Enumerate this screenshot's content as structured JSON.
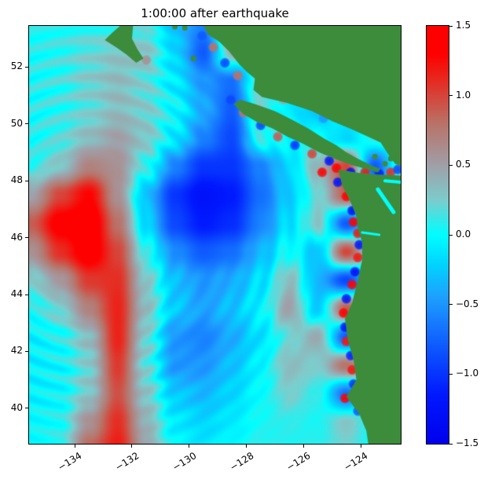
{
  "title": "1:00:00 after earthquake",
  "chart_data": {
    "type": "heatmap",
    "title": "1:00:00 after earthquake",
    "xlabel": "",
    "ylabel": "",
    "x_range": [
      -135.6,
      -122.6
    ],
    "y_range": [
      38.75,
      53.45
    ],
    "xticks": {
      "values": [
        -134,
        -132,
        -130,
        -128,
        -126,
        -124
      ],
      "labels": [
        "−134",
        "−132",
        "−130",
        "−128",
        "−126",
        "−124"
      ]
    },
    "yticks": {
      "values": [
        52,
        50,
        48,
        46,
        44,
        42,
        40
      ],
      "labels": [
        "52",
        "50",
        "48",
        "46",
        "44",
        "42",
        "40"
      ]
    },
    "colorbar": {
      "min": -1.5,
      "max": 1.5,
      "tick_values": [
        1.5,
        1.0,
        0.5,
        0.0,
        -0.5,
        -1.0,
        -1.5
      ],
      "tick_labels": [
        "1.5",
        "1.0",
        "0.5",
        "0.0",
        "−0.5",
        "−1.0",
        "−1.5"
      ]
    },
    "colormap": {
      "stops": [
        [
          -1.5,
          0,
          0,
          238
        ],
        [
          -1.15,
          0,
          25,
          255
        ],
        [
          -0.8,
          15,
          90,
          255
        ],
        [
          -0.45,
          30,
          160,
          255
        ],
        [
          -0.2,
          0,
          215,
          255
        ],
        [
          0.0,
          0,
          255,
          255
        ],
        [
          0.25,
          125,
          205,
          205
        ],
        [
          0.5,
          160,
          160,
          168
        ],
        [
          0.8,
          185,
          115,
          105
        ],
        [
          1.1,
          230,
          45,
          35
        ],
        [
          1.3,
          255,
          0,
          0
        ],
        [
          1.5,
          255,
          0,
          0
        ]
      ]
    },
    "grid": {
      "lons": [
        -135.5,
        -134.5,
        -133.5,
        -132.5,
        -131.5,
        -130.5,
        -129.5,
        -128.5,
        -127.5,
        -126.5,
        -125.5,
        -124.5,
        -123.5,
        -122.5
      ],
      "lats": [
        53.5,
        52.5,
        51.5,
        50.5,
        49.5,
        48.5,
        47.5,
        46.5,
        45.5,
        44.5,
        43.5,
        42.5,
        41.5,
        40.5,
        39.5,
        38.5
      ],
      "eta": [
        [
          0.05,
          0.08,
          0.1,
          0.1,
          0.15,
          -0.3,
          -0.6,
          0.4,
          0.1,
          0.0,
          0.0,
          0.0,
          0.0,
          0.0
        ],
        [
          0.05,
          0.1,
          0.2,
          0.3,
          0.3,
          -0.2,
          -0.8,
          0.4,
          -0.2,
          0.0,
          0.0,
          0.0,
          0.0,
          0.0
        ],
        [
          0.05,
          0.1,
          0.25,
          0.35,
          0.2,
          -0.1,
          -0.5,
          -0.7,
          0.3,
          0.0,
          0.0,
          0.0,
          0.0,
          0.0
        ],
        [
          0.05,
          0.1,
          0.2,
          0.35,
          0.25,
          0.0,
          -0.4,
          -0.8,
          0.2,
          -0.1,
          -0.3,
          0.0,
          0.0,
          0.0
        ],
        [
          0.05,
          0.15,
          0.35,
          0.5,
          0.3,
          -0.1,
          -0.6,
          -0.9,
          0.1,
          0.0,
          0.0,
          -0.2,
          0.1,
          0.0
        ],
        [
          0.1,
          0.3,
          0.7,
          0.6,
          0.1,
          -0.6,
          -1.0,
          -1.0,
          -0.6,
          -0.2,
          0.4,
          1.0,
          -0.8,
          0.3
        ],
        [
          0.5,
          1.0,
          1.3,
          0.6,
          -0.3,
          -1.0,
          -1.25,
          -1.15,
          -0.7,
          -0.25,
          0.2,
          0.9,
          0.0,
          0.0
        ],
        [
          0.9,
          1.4,
          1.5,
          0.8,
          -0.2,
          -0.9,
          -1.15,
          -1.05,
          -0.6,
          -0.15,
          0.3,
          -0.8,
          0.0,
          0.0
        ],
        [
          0.6,
          1.1,
          1.45,
          1.0,
          0.1,
          -0.55,
          -0.8,
          -0.7,
          -0.35,
          0.05,
          -0.3,
          1.0,
          0.0,
          0.0
        ],
        [
          0.25,
          0.55,
          1.05,
          1.1,
          0.3,
          -0.3,
          -0.5,
          -0.4,
          -0.15,
          0.35,
          -0.35,
          -0.9,
          0.0,
          0.0
        ],
        [
          0.05,
          0.25,
          0.7,
          1.15,
          0.35,
          -0.25,
          -0.45,
          -0.3,
          -0.05,
          0.5,
          -0.25,
          0.9,
          0.0,
          0.0
        ],
        [
          -0.05,
          0.05,
          0.35,
          1.15,
          0.25,
          -0.5,
          -0.6,
          -0.4,
          -0.15,
          0.2,
          0.45,
          -0.8,
          0.0,
          0.0
        ],
        [
          -0.05,
          0.0,
          0.25,
          1.05,
          0.2,
          -0.5,
          -0.5,
          -0.3,
          -0.05,
          0.35,
          0.25,
          0.8,
          0.0,
          0.0
        ],
        [
          -0.05,
          0.0,
          0.3,
          0.95,
          0.3,
          -0.25,
          -0.35,
          -0.2,
          0.0,
          0.25,
          0.1,
          -0.7,
          0.5,
          0.0
        ],
        [
          0.0,
          0.05,
          0.6,
          1.1,
          0.4,
          -0.1,
          -0.2,
          -0.1,
          0.05,
          0.1,
          0.05,
          0.3,
          0.0,
          0.0
        ],
        [
          0.0,
          0.1,
          0.9,
          1.2,
          0.5,
          0.0,
          -0.1,
          0.0,
          0.1,
          0.05,
          0.1,
          0.2,
          0.0,
          0.0
        ]
      ]
    },
    "ripples": {
      "center": [
        -133.4,
        46.3
      ],
      "wavelength_deg": 0.65,
      "amplitude": 0.13,
      "r_peak": 5.0,
      "r_sigma": 3.2
    },
    "coastal_spots": [
      [
        -124.85,
        48.45,
        1.4
      ],
      [
        -125.35,
        48.3,
        1.3
      ],
      [
        -124.35,
        48.3,
        -1.3
      ],
      [
        -123.85,
        48.3,
        1.2
      ],
      [
        -123.35,
        48.25,
        -1.1
      ],
      [
        -122.95,
        48.3,
        1.1
      ],
      [
        -122.7,
        48.4,
        -0.9
      ],
      [
        -124.8,
        47.95,
        -1.2
      ],
      [
        -124.5,
        47.45,
        1.4
      ],
      [
        -124.3,
        46.95,
        -1.3
      ],
      [
        -124.25,
        46.55,
        1.3
      ],
      [
        -124.1,
        46.15,
        1.2
      ],
      [
        -124.05,
        45.75,
        -1.2
      ],
      [
        -124.1,
        45.3,
        1.2
      ],
      [
        -124.2,
        44.8,
        -1.3
      ],
      [
        -124.3,
        44.35,
        1.3
      ],
      [
        -124.5,
        43.85,
        -1.2
      ],
      [
        -124.6,
        43.35,
        1.3
      ],
      [
        -124.55,
        42.85,
        -1.2
      ],
      [
        -124.5,
        42.35,
        1.2
      ],
      [
        -124.35,
        41.85,
        -1.1
      ],
      [
        -124.3,
        41.35,
        1.2
      ],
      [
        -124.25,
        40.85,
        -1.0
      ],
      [
        -124.55,
        40.35,
        1.3
      ],
      [
        -124.1,
        39.9,
        -0.8
      ],
      [
        -125.1,
        48.7,
        -1.2
      ],
      [
        -125.7,
        48.95,
        1.0
      ],
      [
        -126.3,
        49.25,
        -1.0
      ],
      [
        -126.9,
        49.55,
        0.9
      ],
      [
        -127.5,
        49.95,
        -0.9
      ],
      [
        -128.1,
        50.4,
        0.8
      ],
      [
        -128.55,
        50.85,
        -0.9
      ],
      [
        -128.3,
        51.7,
        0.8
      ],
      [
        -128.75,
        52.15,
        -0.9
      ],
      [
        -129.15,
        52.7,
        0.8
      ],
      [
        -129.55,
        53.1,
        -0.8
      ],
      [
        -131.5,
        52.25,
        0.6
      ],
      [
        -126.7,
        50.85,
        0.5
      ],
      [
        -125.3,
        50.2,
        -0.5
      ]
    ],
    "land": {
      "color": "#3c8c3c",
      "polygons": {
        "mainland_north": [
          [
            -129.55,
            53.6
          ],
          [
            -129.35,
            53.15
          ],
          [
            -128.95,
            52.9
          ],
          [
            -128.6,
            52.55
          ],
          [
            -128.25,
            52.1
          ],
          [
            -128.0,
            51.85
          ],
          [
            -127.7,
            51.6
          ],
          [
            -127.75,
            51.2
          ],
          [
            -127.45,
            50.95
          ],
          [
            -126.6,
            50.75
          ],
          [
            -125.7,
            50.45
          ],
          [
            -125.0,
            50.1
          ],
          [
            -124.4,
            49.85
          ],
          [
            -123.85,
            49.6
          ],
          [
            -123.3,
            49.35
          ],
          [
            -123.05,
            48.95
          ],
          [
            -122.8,
            48.6
          ],
          [
            -122.4,
            48.45
          ],
          [
            -122.4,
            53.6
          ]
        ],
        "vancouver_island": [
          [
            -123.3,
            48.42
          ],
          [
            -123.65,
            48.55
          ],
          [
            -124.05,
            48.75
          ],
          [
            -124.5,
            49.0
          ],
          [
            -124.85,
            49.25
          ],
          [
            -125.3,
            49.5
          ],
          [
            -125.85,
            49.85
          ],
          [
            -126.4,
            50.15
          ],
          [
            -127.0,
            50.45
          ],
          [
            -127.7,
            50.7
          ],
          [
            -128.2,
            50.85
          ],
          [
            -128.45,
            50.7
          ],
          [
            -128.1,
            50.35
          ],
          [
            -127.6,
            50.05
          ],
          [
            -127.1,
            49.85
          ],
          [
            -126.55,
            49.55
          ],
          [
            -126.0,
            49.3
          ],
          [
            -125.45,
            49.0
          ],
          [
            -124.85,
            48.75
          ],
          [
            -124.3,
            48.55
          ],
          [
            -123.75,
            48.4
          ],
          [
            -123.4,
            48.3
          ]
        ],
        "haida_gwaii": [
          [
            -132.25,
            53.6
          ],
          [
            -132.7,
            53.2
          ],
          [
            -132.95,
            52.95
          ],
          [
            -132.55,
            52.7
          ],
          [
            -132.2,
            52.45
          ],
          [
            -131.85,
            52.15
          ],
          [
            -131.6,
            52.3
          ],
          [
            -131.82,
            52.65
          ],
          [
            -132.0,
            53.0
          ],
          [
            -131.95,
            53.6
          ]
        ],
        "coast_south": [
          [
            -122.4,
            48.18
          ],
          [
            -123.4,
            48.22
          ],
          [
            -124.1,
            48.28
          ],
          [
            -124.78,
            48.4
          ],
          [
            -124.65,
            47.85
          ],
          [
            -124.35,
            47.25
          ],
          [
            -124.15,
            46.75
          ],
          [
            -124.1,
            46.3
          ],
          [
            -123.95,
            45.85
          ],
          [
            -123.95,
            45.2
          ],
          [
            -124.1,
            44.5
          ],
          [
            -124.3,
            43.7
          ],
          [
            -124.55,
            43.15
          ],
          [
            -124.45,
            42.4
          ],
          [
            -124.25,
            41.7
          ],
          [
            -124.15,
            41.0
          ],
          [
            -124.5,
            40.4
          ],
          [
            -124.05,
            39.8
          ],
          [
            -123.8,
            39.2
          ],
          [
            -123.7,
            38.5
          ],
          [
            -122.4,
            38.5
          ]
        ]
      },
      "islets": [
        [
          -123.5,
          48.85
        ],
        [
          -123.15,
          48.6
        ],
        [
          -122.95,
          48.78
        ],
        [
          -130.5,
          53.42
        ],
        [
          -130.15,
          53.38
        ],
        [
          -129.85,
          52.3
        ]
      ]
    },
    "water_channels": [
      {
        "path": [
          [
            -123.4,
            47.7
          ],
          [
            -122.85,
            46.9
          ]
        ],
        "width": 5
      },
      {
        "path": [
          [
            -123.15,
            48.0
          ],
          [
            -122.6,
            47.95
          ]
        ],
        "width": 4
      },
      {
        "path": [
          [
            -123.95,
            46.18
          ],
          [
            -123.35,
            46.1
          ]
        ],
        "width": 3
      }
    ]
  }
}
